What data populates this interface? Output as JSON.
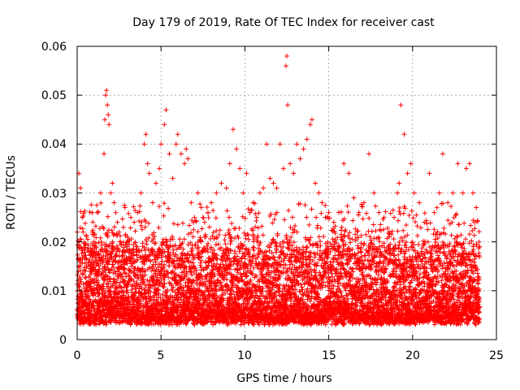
{
  "chart_data": {
    "type": "scatter",
    "title": "Day 179 of 2019, Rate Of TEC Index for receiver cast",
    "xlabel": "GPS time / hours",
    "ylabel": "ROTI / TECUs",
    "xlim": [
      0,
      25
    ],
    "ylim": [
      0,
      0.06
    ],
    "x_ticks": [
      0,
      5,
      10,
      15,
      20,
      25
    ],
    "x_tick_labels": [
      "0",
      "5",
      "10",
      "15",
      "20",
      "25"
    ],
    "y_ticks": [
      0,
      0.01,
      0.02,
      0.03,
      0.04,
      0.05,
      0.06
    ],
    "y_tick_labels": [
      "0",
      "0.01",
      "0.02",
      "0.03",
      "0.04",
      "0.05",
      "0.06"
    ],
    "grid": true,
    "marker": "+",
    "series": [
      {
        "name": "ROTI",
        "color": "#ff0000",
        "x": [
          0.1,
          0.2,
          0.3,
          0.35,
          0.5,
          0.7,
          0.9,
          1.0,
          1.2,
          1.4,
          1.6,
          1.65,
          1.7,
          1.75,
          1.8,
          1.85,
          1.9,
          2.0,
          2.1,
          2.2,
          2.3,
          2.4,
          2.5,
          2.6,
          2.8,
          3.0,
          3.2,
          3.4,
          3.6,
          3.8,
          4.0,
          4.1,
          4.2,
          4.3,
          4.5,
          4.7,
          4.9,
          5.0,
          5.2,
          5.3,
          5.5,
          5.7,
          5.9,
          6.0,
          6.2,
          6.4,
          6.5,
          6.6,
          6.8,
          7.0,
          7.2,
          7.4,
          7.6,
          7.8,
          8.0,
          8.3,
          8.6,
          8.9,
          9.1,
          9.3,
          9.5,
          9.7,
          9.9,
          10.1,
          10.3,
          10.5,
          10.7,
          10.9,
          11.1,
          11.3,
          11.5,
          11.7,
          11.9,
          12.1,
          12.3,
          12.45,
          12.5,
          12.55,
          12.7,
          12.9,
          13.1,
          13.3,
          13.5,
          13.7,
          13.9,
          14.0,
          14.2,
          14.4,
          14.6,
          14.8,
          15.0,
          15.3,
          15.6,
          15.9,
          16.2,
          16.5,
          16.8,
          17.1,
          17.4,
          17.7,
          18.0,
          18.3,
          18.6,
          18.9,
          19.1,
          19.2,
          19.3,
          19.5,
          19.7,
          19.9,
          20.1,
          20.4,
          20.7,
          21.0,
          21.3,
          21.6,
          21.8,
          22.1,
          22.4,
          22.7,
          23.0,
          23.2,
          23.4,
          23.6,
          23.8
        ],
        "y": [
          0.034,
          0.031,
          0.025,
          0.022,
          0.014,
          0.018,
          0.022,
          0.02,
          0.026,
          0.03,
          0.038,
          0.045,
          0.05,
          0.051,
          0.048,
          0.046,
          0.044,
          0.03,
          0.032,
          0.028,
          0.026,
          0.024,
          0.022,
          0.02,
          0.018,
          0.02,
          0.025,
          0.024,
          0.026,
          0.03,
          0.04,
          0.042,
          0.036,
          0.034,
          0.028,
          0.032,
          0.035,
          0.04,
          0.044,
          0.047,
          0.038,
          0.033,
          0.04,
          0.042,
          0.038,
          0.036,
          0.039,
          0.037,
          0.028,
          0.025,
          0.03,
          0.027,
          0.024,
          0.026,
          0.028,
          0.03,
          0.032,
          0.031,
          0.036,
          0.043,
          0.039,
          0.035,
          0.03,
          0.034,
          0.026,
          0.028,
          0.025,
          0.03,
          0.031,
          0.04,
          0.033,
          0.032,
          0.031,
          0.04,
          0.035,
          0.056,
          0.058,
          0.048,
          0.036,
          0.034,
          0.04,
          0.037,
          0.039,
          0.041,
          0.044,
          0.045,
          0.032,
          0.03,
          0.028,
          0.025,
          0.026,
          0.024,
          0.026,
          0.036,
          0.034,
          0.029,
          0.026,
          0.028,
          0.038,
          0.03,
          0.026,
          0.025,
          0.022,
          0.025,
          0.03,
          0.032,
          0.048,
          0.042,
          0.034,
          0.036,
          0.03,
          0.028,
          0.024,
          0.034,
          0.026,
          0.03,
          0.038,
          0.028,
          0.03,
          0.036,
          0.03,
          0.035,
          0.036,
          0.03,
          0.027
        ]
      }
    ]
  }
}
